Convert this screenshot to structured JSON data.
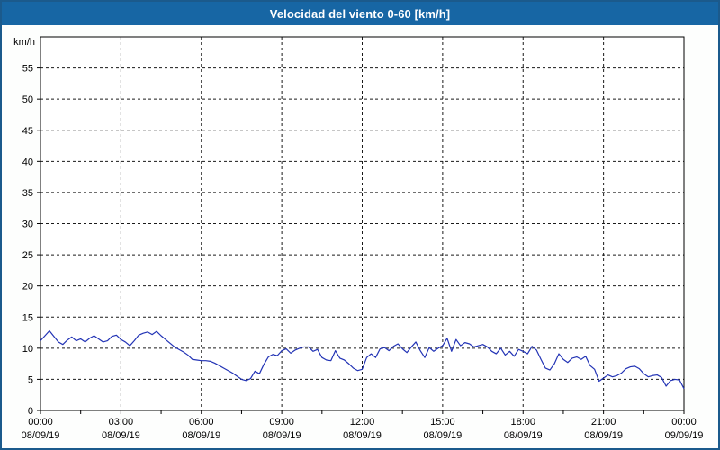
{
  "title": "Velocidad del viento 0-60 [km/h]",
  "colors": {
    "titlebar_bg": "#1766A4",
    "frame_border": "#1B5A8C",
    "series_line": "#2233B5",
    "grid_line": "#1a1a1a",
    "axis_line": "#000000",
    "label_text": "#000000",
    "plot_bg": "#FFFFFF",
    "page_bg": "#FDFEFD"
  },
  "chart_data": {
    "type": "line",
    "title": "Velocidad del viento 0-60 [km/h]",
    "ylabel": "km/h",
    "xlabel": "",
    "ylim": [
      0,
      60
    ],
    "y_tick_step": 5,
    "y_tick_labels": [
      "0",
      "5",
      "10",
      "15",
      "20",
      "25",
      "30",
      "35",
      "40",
      "45",
      "50",
      "55"
    ],
    "x_range_hours": [
      0,
      24
    ],
    "x_major_tick_hours": 3,
    "x_minor_tick_hours": 1.5,
    "grid": "dashed",
    "legend": "none",
    "x_ticks": [
      {
        "time": "00:00",
        "date": "08/09/19"
      },
      {
        "time": "03:00",
        "date": "08/09/19"
      },
      {
        "time": "06:00",
        "date": "08/09/19"
      },
      {
        "time": "09:00",
        "date": "08/09/19"
      },
      {
        "time": "12:00",
        "date": "08/09/19"
      },
      {
        "time": "15:00",
        "date": "08/09/19"
      },
      {
        "time": "18:00",
        "date": "08/09/19"
      },
      {
        "time": "21:00",
        "date": "08/09/19"
      },
      {
        "time": "00:00",
        "date": "09/09/19"
      }
    ],
    "series": [
      {
        "name": "Velocidad del viento",
        "color": "#2233B5",
        "start_hour": 0,
        "interval_minutes": 10,
        "values": [
          11.2,
          12.0,
          12.8,
          11.9,
          11.0,
          10.6,
          11.3,
          11.8,
          11.2,
          11.5,
          11.0,
          11.6,
          12.0,
          11.5,
          11.0,
          11.2,
          11.9,
          12.1,
          11.4,
          11.0,
          10.4,
          11.2,
          12.1,
          12.4,
          12.6,
          12.2,
          12.7,
          12.0,
          11.4,
          10.8,
          10.2,
          9.8,
          9.4,
          8.9,
          8.2,
          8.1,
          8.0,
          8.0,
          7.9,
          7.6,
          7.2,
          6.8,
          6.4,
          6.0,
          5.5,
          5.0,
          4.8,
          5.1,
          6.3,
          5.9,
          7.4,
          8.6,
          9.0,
          8.8,
          9.6,
          9.9,
          9.2,
          9.7,
          10.0,
          10.2,
          10.2,
          9.5,
          9.8,
          8.5,
          8.1,
          8.0,
          9.6,
          8.4,
          8.1,
          7.5,
          6.8,
          6.4,
          6.6,
          8.5,
          9.1,
          8.5,
          9.9,
          10.1,
          9.6,
          10.3,
          10.7,
          9.9,
          9.3,
          10.2,
          11.0,
          9.6,
          8.5,
          10.1,
          9.5,
          10.0,
          10.4,
          11.6,
          9.5,
          11.4,
          10.4,
          10.9,
          10.7,
          10.2,
          10.4,
          10.6,
          10.2,
          9.5,
          9.1,
          10.0,
          8.9,
          9.5,
          8.7,
          9.8,
          9.5,
          9.1,
          10.3,
          9.7,
          8.2,
          6.8,
          6.5,
          7.5,
          9.1,
          8.2,
          7.7,
          8.4,
          8.6,
          8.2,
          8.7,
          7.2,
          6.6,
          4.7,
          5.2,
          5.7,
          5.4,
          5.6,
          6.0,
          6.7,
          7.0,
          7.1,
          6.7,
          5.9,
          5.4,
          5.6,
          5.7,
          5.3,
          3.9,
          4.8,
          5.0,
          4.9,
          3.5
        ]
      }
    ]
  }
}
